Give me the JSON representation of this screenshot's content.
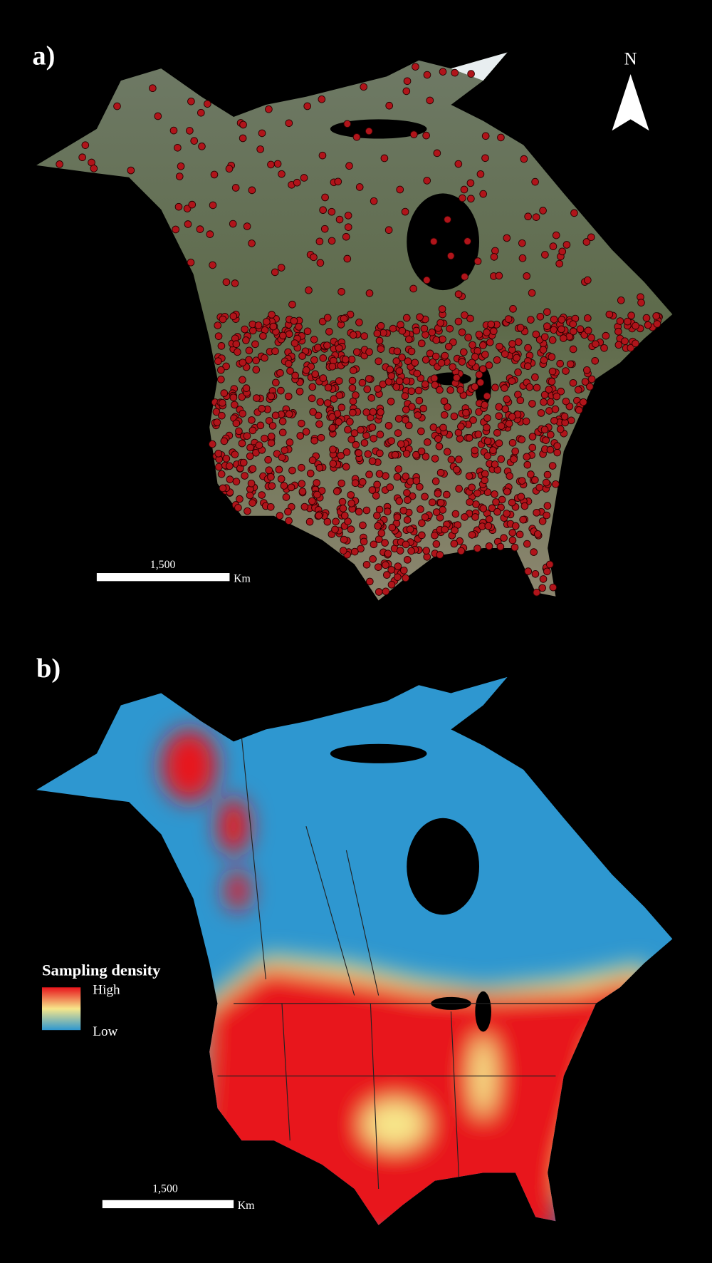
{
  "panels": [
    {
      "label": "a)",
      "north": "N",
      "scale_bar": {
        "label": "1,500",
        "unit": "Km"
      }
    },
    {
      "label": "b)",
      "legend": {
        "title": "Sampling density",
        "high": "High",
        "low": "Low"
      },
      "scale_bar": {
        "label": "1,500",
        "unit": "Km"
      }
    }
  ]
}
